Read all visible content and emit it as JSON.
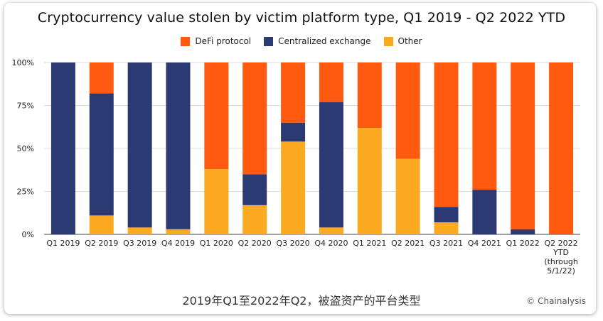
{
  "colors": {
    "defi": "#FF5A0F",
    "cex": "#2B3A73",
    "other": "#FBAA21",
    "grid": "#dddddd",
    "axis": "#444444"
  },
  "legend": {
    "items": [
      "DeFi protocol",
      "Centralized exchange",
      "Other"
    ]
  },
  "subtitle": "2019年Q1至2022年Q2，被盗资产的平台类型",
  "credit": "© Chainalysis",
  "chart_data": {
    "type": "bar",
    "stacked": true,
    "title": "Cryptocurrency value stolen by victim platform type, Q1 2019 - Q2 2022 YTD",
    "xlabel": "",
    "ylabel": "",
    "ylim": [
      0,
      100
    ],
    "yticks": [
      "0%",
      "25%",
      "50%",
      "75%",
      "100%"
    ],
    "grid": true,
    "legend_position": "top",
    "categories": [
      [
        "Q1 2019"
      ],
      [
        "Q2 2019"
      ],
      [
        "Q3 2019"
      ],
      [
        "Q4 2019"
      ],
      [
        "Q1 2020"
      ],
      [
        "Q2 2020"
      ],
      [
        "Q3 2020"
      ],
      [
        "Q4 2020"
      ],
      [
        "Q1 2021"
      ],
      [
        "Q2 2021"
      ],
      [
        "Q3 2021"
      ],
      [
        "Q4 2021"
      ],
      [
        "Q1 2022"
      ],
      [
        "Q2 2022",
        "YTD",
        "(through",
        "5/1/22)"
      ]
    ],
    "series": [
      {
        "name": "Other",
        "values": [
          0,
          11,
          4,
          3,
          38,
          17,
          54,
          4,
          62,
          44,
          7,
          0,
          0,
          0
        ]
      },
      {
        "name": "Centralized exchange",
        "values": [
          100,
          71,
          96,
          97,
          0,
          18,
          11,
          73,
          0,
          0,
          9,
          26,
          3,
          0
        ]
      },
      {
        "name": "DeFi protocol",
        "values": [
          0,
          18,
          0,
          0,
          62,
          65,
          35,
          23,
          38,
          56,
          84,
          74,
          97,
          100
        ]
      }
    ]
  }
}
